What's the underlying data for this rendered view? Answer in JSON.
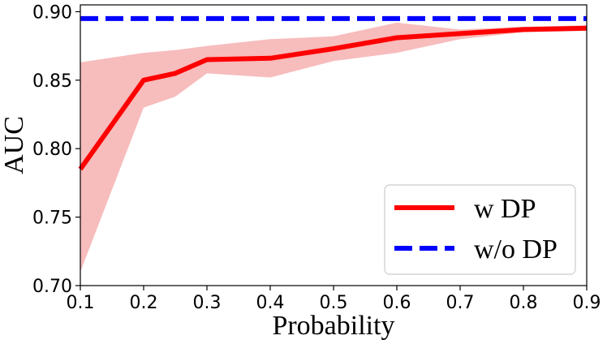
{
  "chart_data": {
    "type": "line",
    "title": "",
    "xlabel": "Probability",
    "ylabel": "AUC",
    "xlim": [
      0.1,
      0.9
    ],
    "ylim": [
      0.7,
      0.905
    ],
    "x_ticks": [
      "0.1",
      "0.2",
      "0.3",
      "0.4",
      "0.5",
      "0.6",
      "0.7",
      "0.8",
      "0.9"
    ],
    "y_ticks": [
      "0.70",
      "0.75",
      "0.80",
      "0.85",
      "0.90"
    ],
    "grid": false,
    "legend_position": "bottom-right",
    "series": [
      {
        "name": "w DP",
        "color": "#ff0000",
        "band_color": "#f4a6a6",
        "style": "solid",
        "x": [
          0.1,
          0.2,
          0.25,
          0.3,
          0.4,
          0.5,
          0.6,
          0.7,
          0.8,
          0.9
        ],
        "y": [
          0.785,
          0.85,
          0.855,
          0.865,
          0.866,
          0.873,
          0.881,
          0.884,
          0.887,
          0.888
        ],
        "lower": [
          0.71,
          0.83,
          0.838,
          0.855,
          0.852,
          0.864,
          0.87,
          0.88,
          0.885,
          0.886
        ],
        "upper": [
          0.863,
          0.87,
          0.872,
          0.875,
          0.88,
          0.882,
          0.892,
          0.887,
          0.889,
          0.89
        ]
      },
      {
        "name": "w/o DP",
        "color": "#0000ff",
        "style": "dashed",
        "x": [
          0.1,
          0.9
        ],
        "y": [
          0.895,
          0.895
        ]
      }
    ]
  }
}
